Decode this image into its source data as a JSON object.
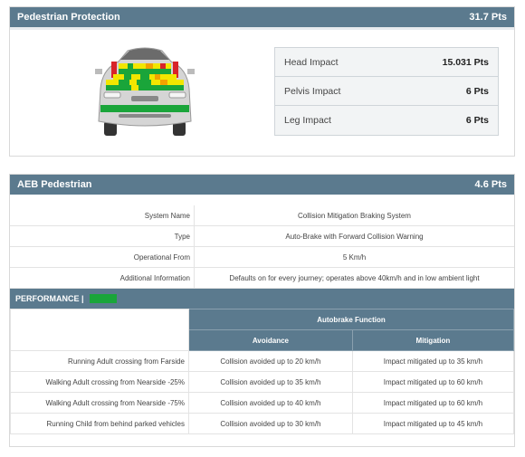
{
  "pedestrian_protection": {
    "title": "Pedestrian Protection",
    "score": "31.7 Pts",
    "impacts": [
      {
        "label": "Head Impact",
        "value": "15.031 Pts"
      },
      {
        "label": "Pelvis Impact",
        "value": "6 Pts"
      },
      {
        "label": "Leg Impact",
        "value": "6 Pts"
      }
    ],
    "car_image": "car-front-impact-map"
  },
  "aeb": {
    "title": "AEB Pedestrian",
    "score": "4.6 Pts",
    "info": [
      {
        "key": "System Name",
        "value": "Collision Mitigation Braking System"
      },
      {
        "key": "Type",
        "value": "Auto-Brake with Forward Collision Warning"
      },
      {
        "key": "Operational From",
        "value": "5 Km/h"
      },
      {
        "key": "Additional Information",
        "value": "Defaults on for every journey; operates above 40km/h and in low ambient light"
      }
    ],
    "performance_label": "PERFORMANCE |",
    "performance_color": "#1aa53a",
    "function_header": "Autobrake Function",
    "col_avoidance": "Avoidance",
    "col_mitigation": "Mitigation",
    "rows": [
      {
        "scenario": "Running Adult crossing from Farside",
        "avoidance": "Collision avoided up to 20 km/h",
        "mitigation": "Impact mitigated up to 35 km/h"
      },
      {
        "scenario": "Walking Adult crossing from Nearside -25%",
        "avoidance": "Collision avoided up to 35 km/h",
        "mitigation": "Impact mitigated up to 60 km/h"
      },
      {
        "scenario": "Walking Adult crossing from Nearside -75%",
        "avoidance": "Collision avoided up to 40 km/h",
        "mitigation": "Impact mitigated up to 60 km/h"
      },
      {
        "scenario": "Running Child from behind parked vehicles",
        "avoidance": "Collision avoided up to 30 km/h",
        "mitigation": "Impact mitigated up to 45 km/h"
      }
    ]
  },
  "colors": {
    "header": "#5b7a8e",
    "good": "#1aa53a",
    "adequate": "#f2e600",
    "marginal": "#f2a200",
    "poor": "#d8232a"
  }
}
